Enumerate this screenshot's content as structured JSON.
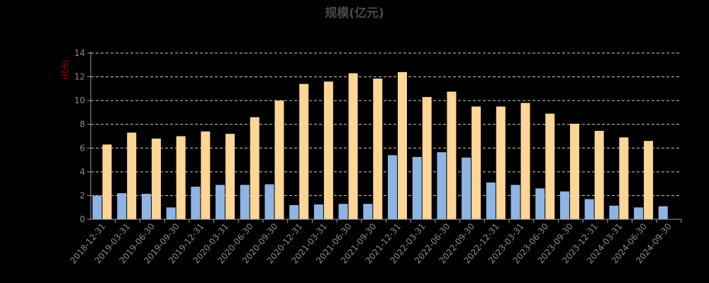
{
  "chart_data": {
    "type": "bar",
    "title": "规模(亿元)",
    "ylabel": "(亿元)",
    "xlabel": "",
    "ylim": [
      0,
      14
    ],
    "yticks": [
      0,
      2,
      4,
      6,
      8,
      10,
      12,
      14
    ],
    "grid": true,
    "categories": [
      "2018-12-31",
      "2019-03-31",
      "2019-06-30",
      "2019-09-30",
      "2019-12-31",
      "2020-03-31",
      "2020-06-30",
      "2020-09-30",
      "2020-12-31",
      "2021-03-31",
      "2021-06-30",
      "2021-09-30",
      "2021-12-31",
      "2022-03-31",
      "2022-06-30",
      "2022-09-30",
      "2022-12-31",
      "2023-03-31",
      "2023-06-30",
      "2023-09-30",
      "2023-12-31",
      "2024-03-31",
      "2024-06-30",
      "2024-09-30"
    ],
    "series": [
      {
        "color": "#8eb4e3",
        "values": [
          2.0,
          2.2,
          2.15,
          1.0,
          2.75,
          2.9,
          2.9,
          2.95,
          1.2,
          1.25,
          1.3,
          1.3,
          5.4,
          5.25,
          5.65,
          5.2,
          3.1,
          2.9,
          2.6,
          2.35,
          1.7,
          1.15,
          1.0,
          1.1
        ]
      },
      {
        "color": "#fcd597",
        "values": [
          6.3,
          7.3,
          6.8,
          7.0,
          7.4,
          7.2,
          8.6,
          10.0,
          11.4,
          11.6,
          12.3,
          11.85,
          12.4,
          10.3,
          10.75,
          9.5,
          9.5,
          9.8,
          8.9,
          8.05,
          7.45,
          6.9,
          6.6,
          null
        ]
      }
    ]
  }
}
